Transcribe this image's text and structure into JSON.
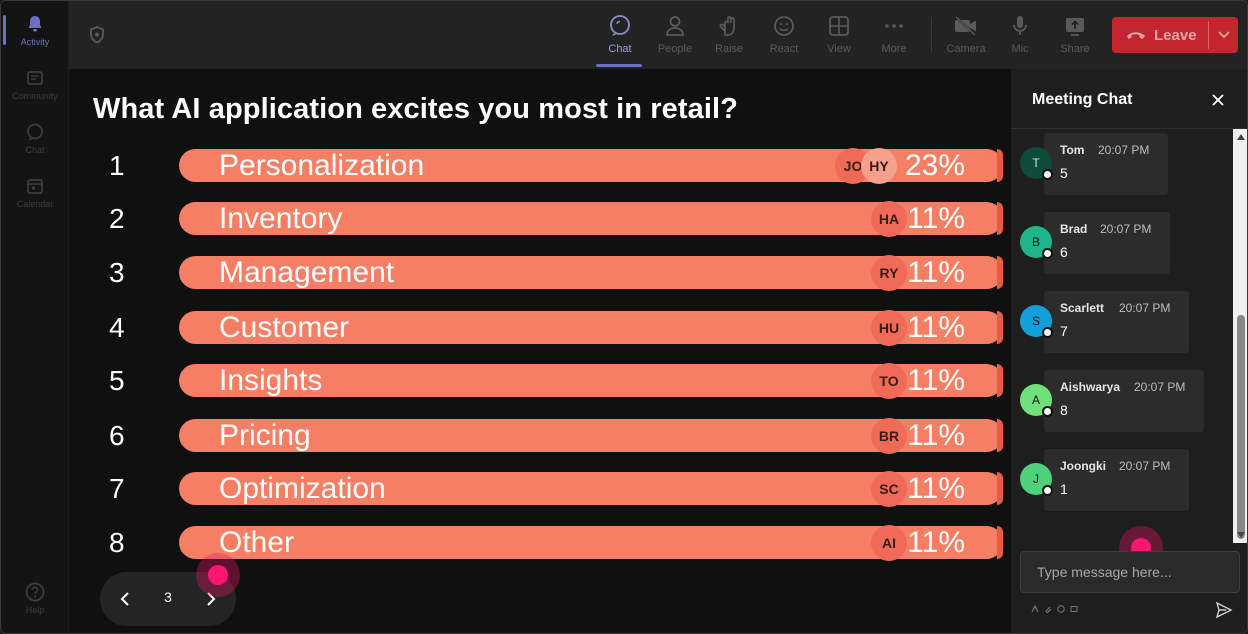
{
  "rail": {
    "items": [
      {
        "label": "Activity",
        "icon": "bell-icon",
        "active": true
      },
      {
        "label": "Community",
        "icon": "community-icon",
        "active": false
      },
      {
        "label": "Chat",
        "icon": "chat-icon",
        "active": false
      },
      {
        "label": "Calendar",
        "icon": "calendar-icon",
        "active": false
      }
    ],
    "help": {
      "label": "Help",
      "icon": "help-icon"
    }
  },
  "toolbar": {
    "buttons": [
      {
        "label": "Chat",
        "icon": "chat-icon",
        "active": true
      },
      {
        "label": "People",
        "icon": "people-icon",
        "active": false
      },
      {
        "label": "Raise",
        "icon": "raise-hand-icon",
        "active": false
      },
      {
        "label": "React",
        "icon": "react-icon",
        "active": false
      },
      {
        "label": "View",
        "icon": "view-icon",
        "active": false
      },
      {
        "label": "More",
        "icon": "more-icon",
        "active": false
      },
      {
        "label": "Camera",
        "icon": "camera-off-icon",
        "active": false
      },
      {
        "label": "Mic",
        "icon": "mic-icon",
        "active": false
      },
      {
        "label": "Share",
        "icon": "share-icon",
        "active": false
      }
    ],
    "leave_label": "Leave",
    "leave_color": "#c4262e"
  },
  "poll": {
    "question": "What AI application excites you most in retail?",
    "bar_color": "#f57f64",
    "options": [
      {
        "number": "1",
        "label": "Personalization",
        "voters": [
          "JO",
          "HY"
        ],
        "percent": "23%"
      },
      {
        "number": "2",
        "label": "Inventory",
        "voters": [
          "HA"
        ],
        "percent": "11%"
      },
      {
        "number": "3",
        "label": "Management",
        "voters": [
          "RY"
        ],
        "percent": "11%"
      },
      {
        "number": "4",
        "label": "Customer",
        "voters": [
          "HU"
        ],
        "percent": "11%"
      },
      {
        "number": "5",
        "label": "Insights",
        "voters": [
          "TO"
        ],
        "percent": "11%"
      },
      {
        "number": "6",
        "label": "Pricing",
        "voters": [
          "BR"
        ],
        "percent": "11%"
      },
      {
        "number": "7",
        "label": "Optimization",
        "voters": [
          "SC"
        ],
        "percent": "11%"
      },
      {
        "number": "8",
        "label": "Other",
        "voters": [
          "AI"
        ],
        "percent": "11%"
      }
    ],
    "pager": {
      "page": "3"
    }
  },
  "chat": {
    "title": "Meeting Chat",
    "messages": [
      {
        "initial": "T",
        "name": "Tom",
        "time": "20:07 PM",
        "text": "5",
        "color": "#0f4a3a"
      },
      {
        "initial": "B",
        "name": "Brad",
        "time": "20:07 PM",
        "text": "6",
        "color": "#1fb48a"
      },
      {
        "initial": "S",
        "name": "Scarlett",
        "time": "20:07 PM",
        "text": "7",
        "color": "#13a0d8"
      },
      {
        "initial": "A",
        "name": "Aishwarya",
        "time": "20:07 PM",
        "text": "8",
        "color": "#6fe07a"
      },
      {
        "initial": "J",
        "name": "Joongki",
        "time": "20:07 PM",
        "text": "1",
        "color": "#4fd07a"
      }
    ],
    "input_placeholder": "Type message here..."
  }
}
